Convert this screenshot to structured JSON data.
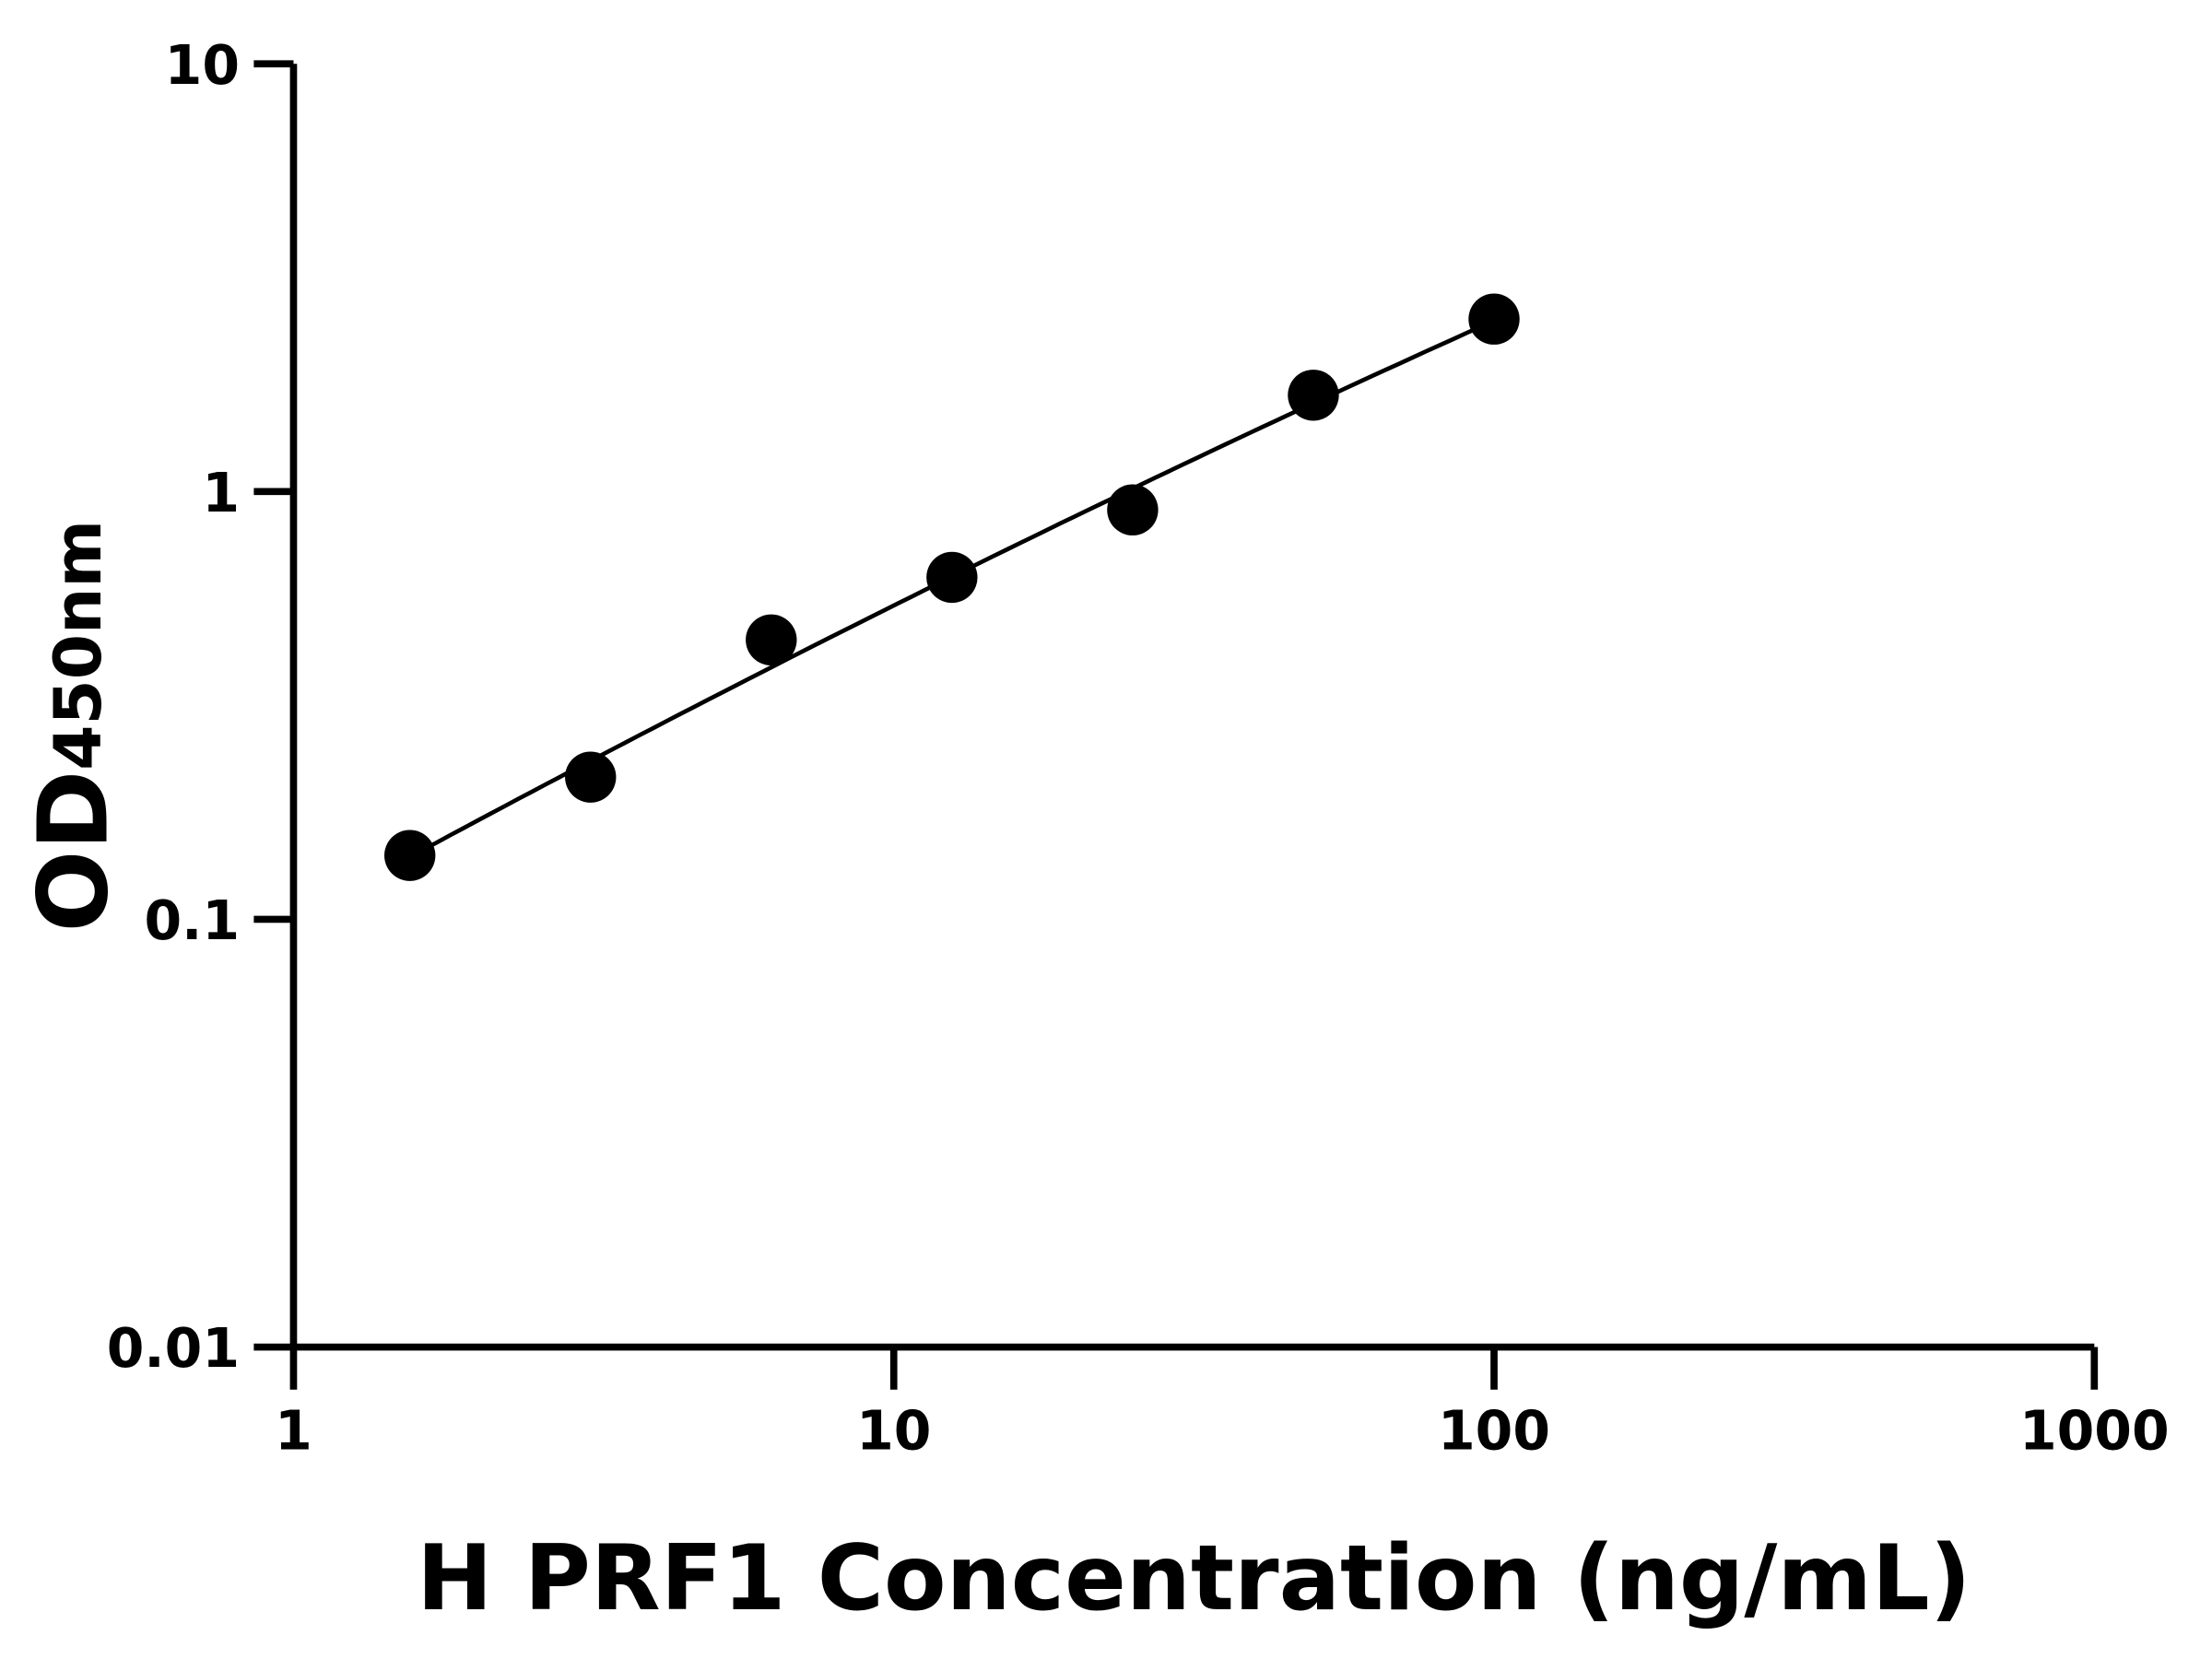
{
  "chart_data": {
    "type": "scatter",
    "title": "",
    "xlabel": "H PRF1 Concentration (ng/mL)",
    "ylabel_main": "OD",
    "ylabel_sub": "450nm",
    "x_scale": "log",
    "y_scale": "log",
    "xlim": [
      1,
      1000
    ],
    "ylim": [
      0.01,
      10
    ],
    "x_ticks": [
      "1",
      "10",
      "100",
      "1000"
    ],
    "y_ticks": [
      "0.01",
      "0.1",
      "1",
      "10"
    ],
    "grid": false,
    "fit_line": true,
    "colors": {
      "points": "#000000",
      "line": "#000000",
      "axes": "#000000"
    },
    "points": [
      {
        "x": 1.5625,
        "y": 0.141
      },
      {
        "x": 3.125,
        "y": 0.215
      },
      {
        "x": 6.25,
        "y": 0.45
      },
      {
        "x": 12.5,
        "y": 0.63
      },
      {
        "x": 25,
        "y": 0.906
      },
      {
        "x": 50,
        "y": 1.68
      },
      {
        "x": 100,
        "y": 2.53
      }
    ]
  }
}
